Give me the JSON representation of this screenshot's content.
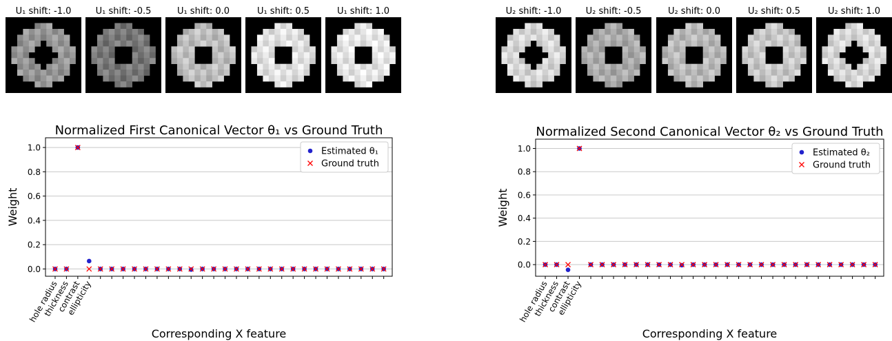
{
  "image_panels": [
    {
      "title": "U₁ shift: -1.0"
    },
    {
      "title": "U₁ shift: -0.5"
    },
    {
      "title": "U₁ shift: 0.0"
    },
    {
      "title": "U₁ shift: 0.5"
    },
    {
      "title": "U₁ shift: 1.0"
    },
    {
      "title": "U₂ shift: -1.0"
    },
    {
      "title": "U₂ shift: -0.5"
    },
    {
      "title": "U₂ shift: 0.0"
    },
    {
      "title": "U₂ shift: 0.5"
    },
    {
      "title": "U₂ shift: 1.0"
    }
  ],
  "chart_data": [
    {
      "type": "scatter",
      "title": "Normalized First Canonical Vector θ₁ vs Ground Truth",
      "xlabel": "Corresponding X feature",
      "ylabel": "Weight",
      "categories": [
        "hole radius",
        "thickness",
        "contrast",
        "ellipticity",
        null,
        null,
        null,
        null,
        null,
        null,
        null,
        null,
        null,
        null,
        null,
        null,
        null,
        null,
        null,
        null,
        null,
        null,
        null,
        null,
        null,
        null,
        null,
        null,
        null,
        null
      ],
      "series": [
        {
          "name": "Estimated θ₁",
          "color": "#2222cc",
          "marker": "o",
          "values": [
            0,
            0,
            1.0,
            0.065,
            0,
            0,
            0,
            0,
            0,
            0,
            0,
            0,
            -0.005,
            0,
            0,
            0,
            0,
            0,
            0,
            0,
            0,
            0,
            0,
            0,
            0,
            0,
            0,
            0,
            0,
            0
          ]
        },
        {
          "name": "Ground truth",
          "color": "#ff0000",
          "marker": "x",
          "values": [
            0,
            0,
            1,
            0,
            0,
            0,
            0,
            0,
            0,
            0,
            0,
            0,
            0,
            0,
            0,
            0,
            0,
            0,
            0,
            0,
            0,
            0,
            0,
            0,
            0,
            0,
            0,
            0,
            0,
            0
          ]
        }
      ],
      "ylim": [
        -0.06,
        1.08
      ],
      "yticks": [
        {
          "value": 0,
          "label": "0.0"
        },
        0.2,
        0.4,
        0.6,
        0.8,
        {
          "value": 1,
          "label": "1.0"
        }
      ],
      "grid": true,
      "legend": "upper right"
    },
    {
      "type": "scatter",
      "title": "Normalized Second Canonical Vector θ₂ vs Ground Truth",
      "xlabel": "Corresponding X feature",
      "ylabel": "Weight",
      "categories": [
        "hole radius",
        "thickness",
        "contrast",
        "ellipticity",
        null,
        null,
        null,
        null,
        null,
        null,
        null,
        null,
        null,
        null,
        null,
        null,
        null,
        null,
        null,
        null,
        null,
        null,
        null,
        null,
        null,
        null,
        null,
        null,
        null,
        null
      ],
      "series": [
        {
          "name": "Estimated θ₂",
          "color": "#2222cc",
          "marker": "o",
          "values": [
            0,
            0,
            -0.045,
            1.0,
            0,
            0,
            0,
            0,
            0,
            0,
            0,
            0,
            -0.005,
            0,
            0,
            0,
            0,
            0,
            0,
            0,
            0,
            0,
            0,
            0,
            0,
            0,
            0,
            0,
            0,
            0
          ]
        },
        {
          "name": "Ground truth",
          "color": "#ff0000",
          "marker": "x",
          "values": [
            0,
            0,
            0,
            1,
            0,
            0,
            0,
            0,
            0,
            0,
            0,
            0,
            0,
            0,
            0,
            0,
            0,
            0,
            0,
            0,
            0,
            0,
            0,
            0,
            0,
            0,
            0,
            0,
            0,
            0
          ]
        }
      ],
      "ylim": [
        -0.1,
        1.08
      ],
      "yticks": [
        {
          "value": 0,
          "label": "0.0"
        },
        0.2,
        0.4,
        0.6,
        0.8,
        {
          "value": 1,
          "label": "1.0"
        }
      ],
      "grid": true,
      "legend": "upper right"
    }
  ]
}
